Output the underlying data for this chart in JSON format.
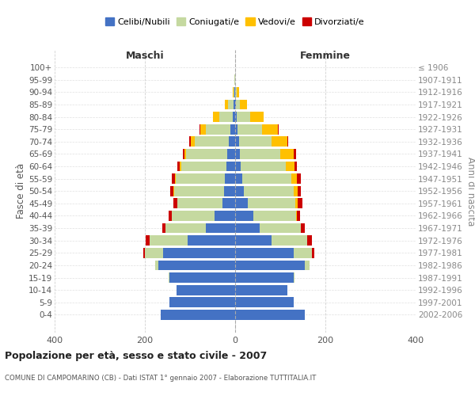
{
  "age_groups": [
    "0-4",
    "5-9",
    "10-14",
    "15-19",
    "20-24",
    "25-29",
    "30-34",
    "35-39",
    "40-44",
    "45-49",
    "50-54",
    "55-59",
    "60-64",
    "65-69",
    "70-74",
    "75-79",
    "80-84",
    "85-89",
    "90-94",
    "95-99",
    "100+"
  ],
  "birth_years": [
    "2002-2006",
    "1997-2001",
    "1992-1996",
    "1987-1991",
    "1982-1986",
    "1977-1981",
    "1972-1976",
    "1967-1971",
    "1962-1966",
    "1957-1961",
    "1952-1956",
    "1947-1951",
    "1942-1946",
    "1937-1941",
    "1932-1936",
    "1927-1931",
    "1922-1926",
    "1917-1921",
    "1912-1916",
    "1907-1911",
    "≤ 1906"
  ],
  "maschi": {
    "celibe": [
      165,
      145,
      130,
      145,
      170,
      160,
      105,
      65,
      45,
      28,
      25,
      22,
      20,
      18,
      14,
      10,
      5,
      3,
      1,
      0,
      0
    ],
    "coniugato": [
      0,
      0,
      0,
      2,
      8,
      40,
      85,
      90,
      95,
      100,
      110,
      110,
      100,
      90,
      75,
      55,
      30,
      12,
      3,
      1,
      0
    ],
    "vedovo": [
      0,
      0,
      0,
      0,
      0,
      0,
      0,
      0,
      0,
      0,
      1,
      1,
      3,
      5,
      10,
      12,
      15,
      8,
      2,
      0,
      0
    ],
    "divorziato": [
      0,
      0,
      0,
      0,
      0,
      3,
      8,
      6,
      7,
      8,
      8,
      8,
      5,
      3,
      3,
      2,
      0,
      0,
      0,
      0,
      0
    ]
  },
  "femmine": {
    "nubile": [
      155,
      130,
      115,
      130,
      155,
      130,
      80,
      55,
      40,
      28,
      20,
      15,
      12,
      10,
      8,
      5,
      3,
      1,
      0,
      0,
      0
    ],
    "coniugata": [
      0,
      0,
      0,
      2,
      10,
      40,
      80,
      90,
      95,
      105,
      110,
      110,
      100,
      90,
      72,
      55,
      30,
      10,
      3,
      0,
      0
    ],
    "vedova": [
      0,
      0,
      0,
      0,
      0,
      0,
      0,
      1,
      2,
      6,
      8,
      12,
      20,
      30,
      35,
      35,
      30,
      15,
      5,
      0,
      0
    ],
    "divorziata": [
      0,
      0,
      0,
      0,
      0,
      5,
      10,
      8,
      7,
      10,
      8,
      8,
      5,
      5,
      2,
      1,
      0,
      0,
      0,
      0,
      0
    ]
  },
  "colors": {
    "celibe": "#4472c4",
    "coniugato": "#c5d9a0",
    "vedovo": "#ffc000",
    "divorziato": "#cc0000"
  },
  "legend_labels": [
    "Celibi/Nubili",
    "Coniugati/e",
    "Vedovi/e",
    "Divorziati/e"
  ],
  "legend_colors": [
    "#4472c4",
    "#c5d9a0",
    "#ffc000",
    "#cc0000"
  ],
  "title": "Popolazione per età, sesso e stato civile - 2007",
  "subtitle": "COMUNE DI CAMPOMARINO (CB) - Dati ISTAT 1° gennaio 2007 - Elaborazione TUTTITALIA.IT",
  "ylabel_left": "Fasce di età",
  "ylabel_right": "Anni di nascita",
  "xlabel_maschi": "Maschi",
  "xlabel_femmine": "Femmine",
  "xlim": 400,
  "bg_color": "#ffffff",
  "grid_color": "#cccccc",
  "bar_height": 0.82
}
